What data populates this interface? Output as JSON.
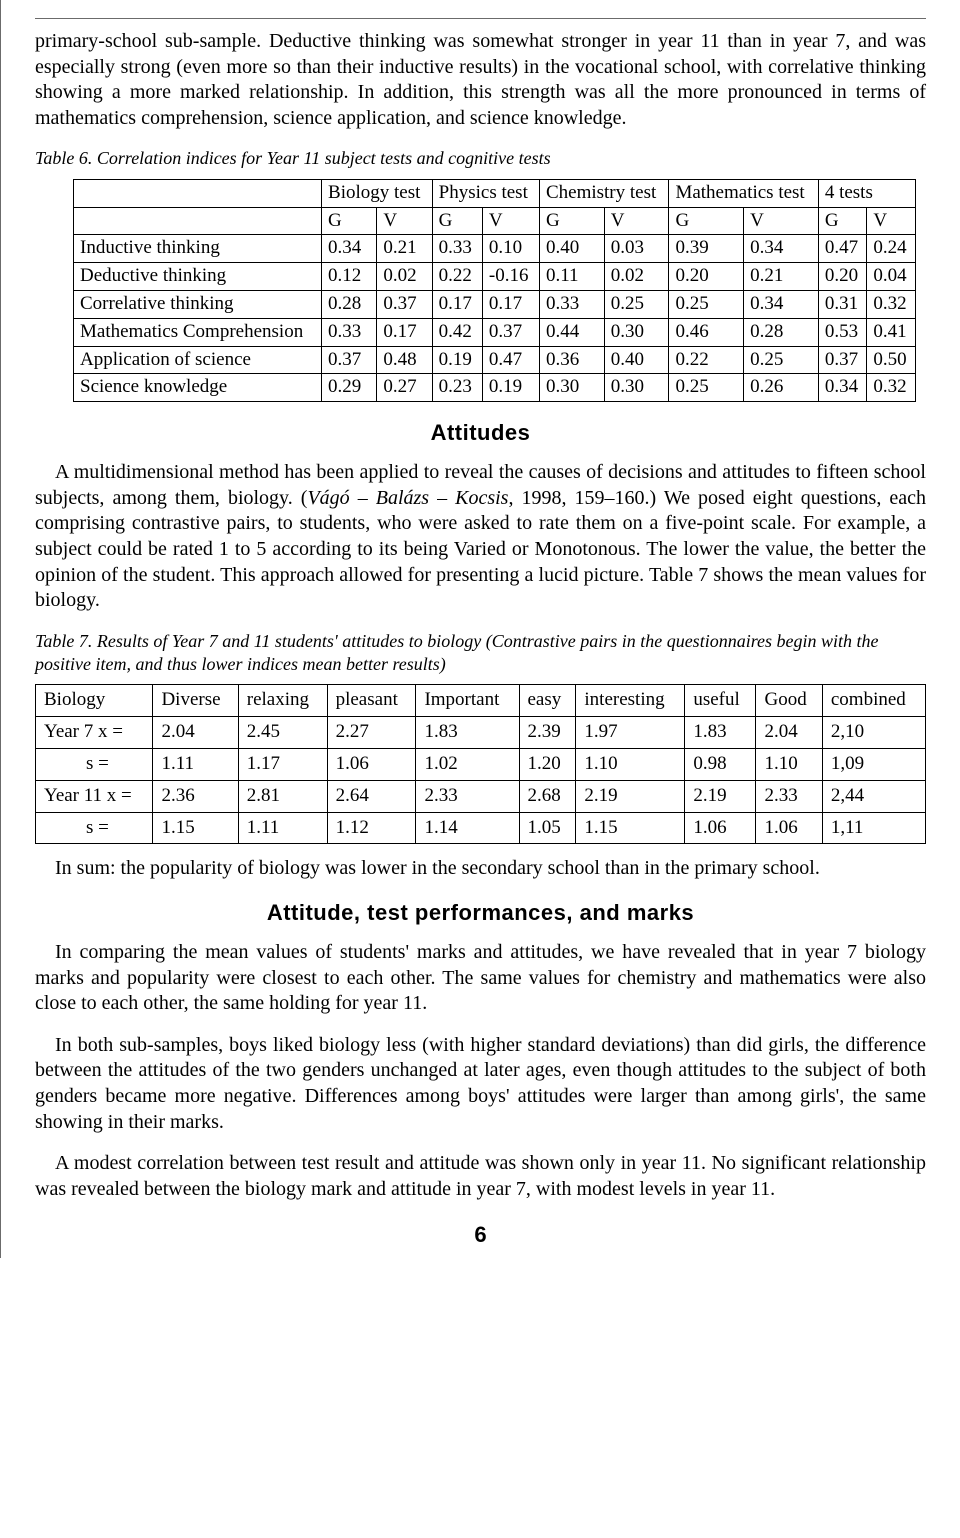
{
  "para1": "primary-school sub-sample. Deductive thinking was somewhat stronger in year 11 than in year 7, and was especially strong (even more so than their inductive results) in the vocational school, with correlative thinking showing a more marked relationship. In addition, this strength was all the more pronounced in terms of mathematics comprehension, science application, and science knowledge.",
  "table6": {
    "caption": "Table 6. Correlation indices for Year 11 subject tests and cognitive tests",
    "top_headers": [
      "Biology test",
      "Physics test",
      "Chemistry test",
      "Mathematics test",
      "4 tests"
    ],
    "sub_headers": [
      "G",
      "V",
      "G",
      "V",
      "G",
      "V",
      "G",
      "V",
      "G",
      "V"
    ],
    "rows": [
      {
        "label": "Inductive thinking",
        "vals": [
          "0.34",
          "0.21",
          "0.33",
          "0.10",
          "0.40",
          "0.03",
          "0.39",
          "0.34",
          "0.47",
          "0.24"
        ]
      },
      {
        "label": "Deductive thinking",
        "vals": [
          "0.12",
          "0.02",
          "0.22",
          "-0.16",
          "0.11",
          "0.02",
          "0.20",
          "0.21",
          "0.20",
          "0.04"
        ]
      },
      {
        "label": "Correlative thinking",
        "vals": [
          "0.28",
          "0.37",
          "0.17",
          "0.17",
          "0.33",
          "0.25",
          "0.25",
          "0.34",
          "0.31",
          "0.32"
        ]
      },
      {
        "label": "Mathematics Comprehension",
        "vals": [
          "0.33",
          "0.17",
          "0.42",
          "0.37",
          "0.44",
          "0.30",
          "0.46",
          "0.28",
          "0.53",
          "0.41"
        ]
      },
      {
        "label": "Application of science",
        "vals": [
          "0.37",
          "0.48",
          "0.19",
          "0.47",
          "0.36",
          "0.40",
          "0.22",
          "0.25",
          "0.37",
          "0.50"
        ]
      },
      {
        "label": "Science knowledge",
        "vals": [
          "0.29",
          "0.27",
          "0.23",
          "0.19",
          "0.30",
          "0.30",
          "0.25",
          "0.26",
          "0.34",
          "0.32"
        ]
      }
    ]
  },
  "heading_attitudes": "Attitudes",
  "para2_pre": "A multidimensional method has been applied to reveal the causes of decisions and attitudes to fifteen school subjects, among them, biology. (",
  "para2_italic": "Vágó – Balázs – Kocsis",
  "para2_post": ", 1998, 159–160.) We posed eight questions, each comprising contrastive pairs, to students, who were asked to rate them on a five-point scale. For example, a subject could be rated 1 to 5 according to its being Varied or Monotonous. The lower the value, the better the opinion of the student. This approach allowed for presenting a lucid picture. Table 7 shows the mean values for biology.",
  "table7": {
    "caption": "Table 7. Results of Year 7 and 11 students' attitudes to biology (Contrastive pairs in the questionnaires begin with the positive item, and thus lower indices mean better results)",
    "columns": [
      "Biology",
      "Diverse",
      "relaxing",
      "pleasant",
      "Important",
      "easy",
      "interesting",
      "useful",
      "Good",
      "combined"
    ],
    "rows": [
      {
        "label": "Year 7    x =",
        "indent": false,
        "vals": [
          "2.04",
          "2.45",
          "2.27",
          "1.83",
          "2.39",
          "1.97",
          "1.83",
          "2.04",
          "2,10"
        ]
      },
      {
        "label": "s =",
        "indent": true,
        "vals": [
          "1.11",
          "1.17",
          "1.06",
          "1.02",
          "1.20",
          "1.10",
          "0.98",
          "1.10",
          "1,09"
        ]
      },
      {
        "label": "Year 11 x =",
        "indent": false,
        "vals": [
          "2.36",
          "2.81",
          "2.64",
          "2.33",
          "2.68",
          "2.19",
          "2.19",
          "2.33",
          "2,44"
        ]
      },
      {
        "label": "s =",
        "indent": true,
        "vals": [
          "1.15",
          "1.11",
          "1.12",
          "1.14",
          "1.05",
          "1.15",
          "1.06",
          "1.06",
          "1,11"
        ]
      }
    ]
  },
  "para3": "In sum: the popularity of biology was lower in the secondary school than in the primary school.",
  "heading_attp": "Attitude, test performances, and marks",
  "para4": "In comparing the mean values of students' marks and attitudes, we have revealed that in year 7 biology marks and popularity were closest to each other. The same values for chemistry and mathematics were also close to each other, the same holding for year 11.",
  "para5": "In both sub-samples, boys liked biology less (with higher standard deviations) than did girls, the difference between the attitudes of the two genders unchanged at later ages, even though attitudes to the subject of both genders became more negative. Differences among boys' attitudes were larger than among girls', the same showing in their marks.",
  "para6": "A modest correlation between test result and attitude was shown only in year 11. No significant relationship was revealed between the biology mark and attitude in year 7, with modest levels in year 11.",
  "page_number": "6"
}
